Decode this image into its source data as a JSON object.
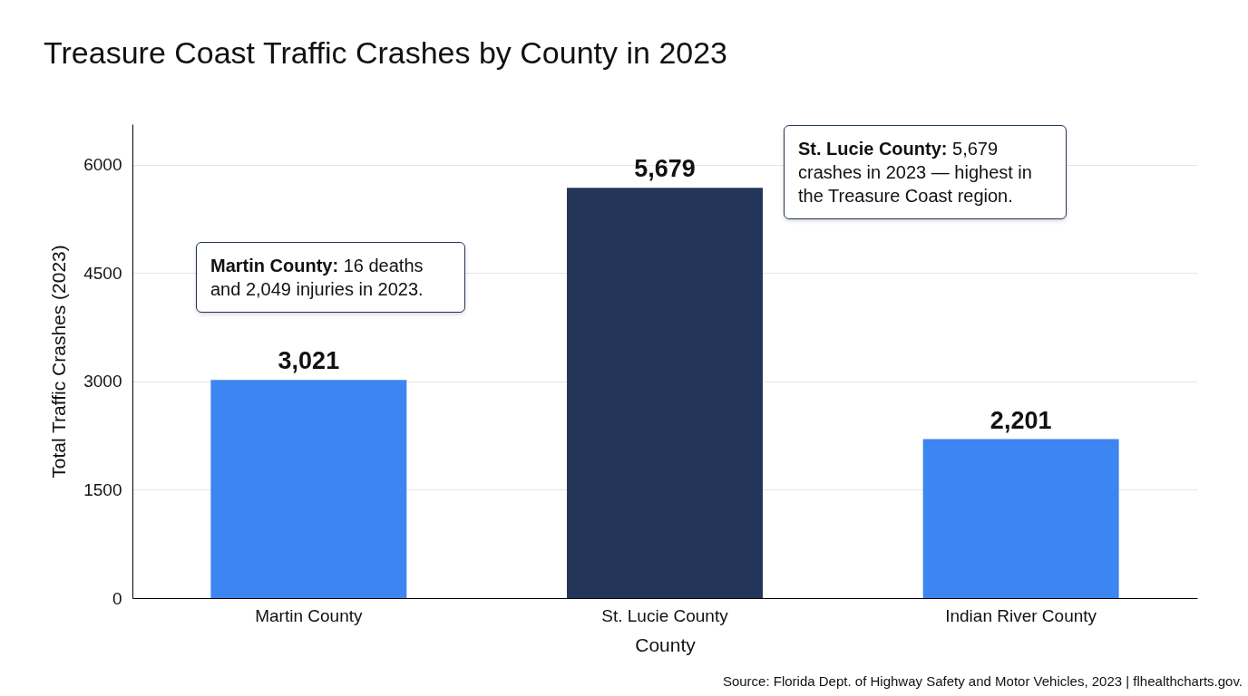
{
  "chart_data": {
    "type": "bar",
    "title": "Treasure Coast Traffic Crashes by County in 2023",
    "xlabel": "County",
    "ylabel": "Total Traffic Crashes (2023)",
    "categories": [
      "Martin County",
      "St. Lucie County",
      "Indian River County"
    ],
    "values": [
      3021,
      5679,
      2201
    ],
    "colors": [
      "#3d85f0",
      "#24355a",
      "#3d85f0"
    ],
    "value_labels": [
      "3,021",
      "5,679",
      "2,201"
    ],
    "ylim": [
      0,
      6560
    ],
    "yticks": [
      0,
      1500,
      3000,
      4500,
      6000
    ],
    "grid": "y",
    "annotations": [
      "Martin County: 16 deaths and 2,049 injuries in 2023.",
      "St. Lucie County: 5,679 crashes in 2023 — highest in the Treasure Coast region.",
      "Source: Florida Dept. of Highway Safety and Motor Vehicles, 2023 | flhealthcharts.gov."
    ]
  }
}
